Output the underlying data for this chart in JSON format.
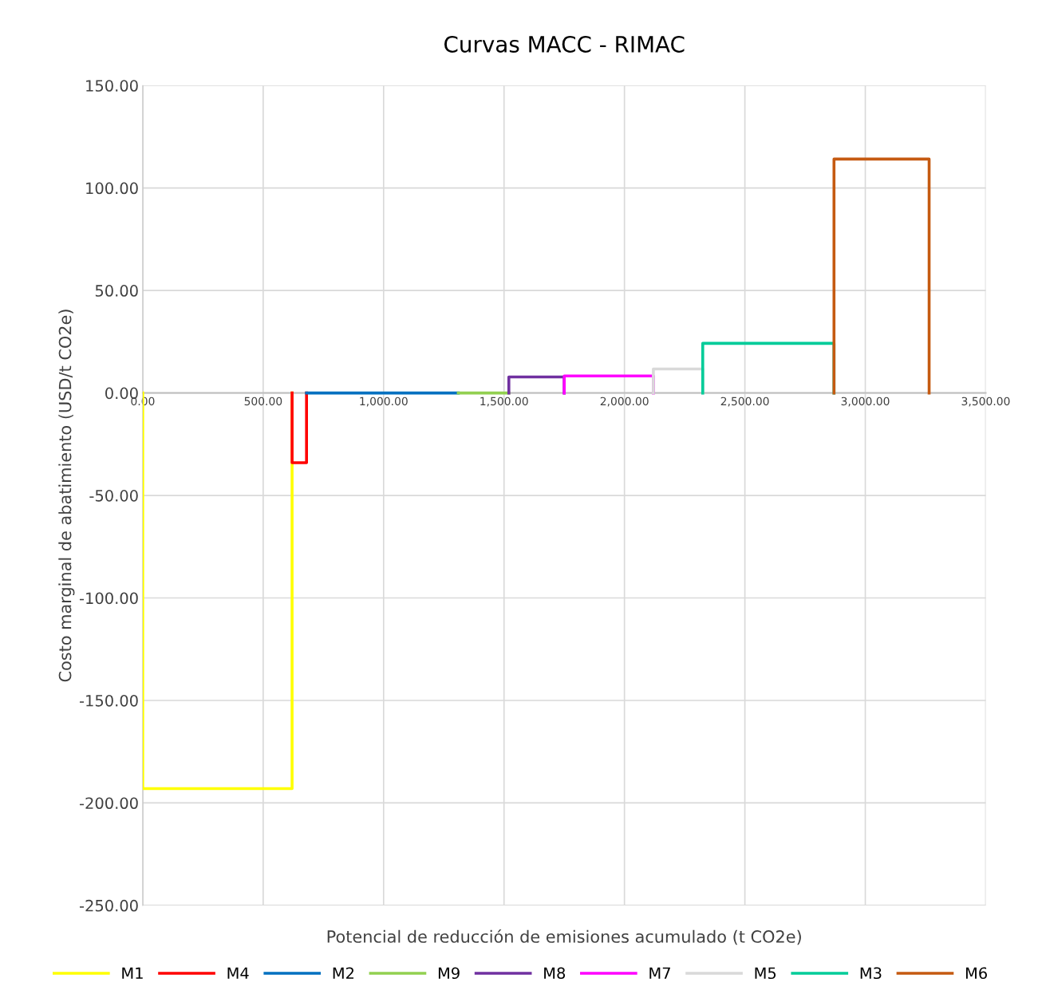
{
  "chart_data": {
    "type": "line",
    "title": "Curvas MACC - RIMAC",
    "xlabel": "Potencial de reducción de emisiones acumulado (t CO2e)",
    "ylabel": "Costo marginal de abatimiento (USD/t CO2e)",
    "xlim": [
      0,
      3500
    ],
    "ylim": [
      -250,
      150
    ],
    "xticks": [
      {
        "value": 0,
        "label": "0.00"
      },
      {
        "value": 500,
        "label": "500.00"
      },
      {
        "value": 1000,
        "label": "1,000.00"
      },
      {
        "value": 1500,
        "label": "1,500.00"
      },
      {
        "value": 2000,
        "label": "2,000.00"
      },
      {
        "value": 2500,
        "label": "2,500.00"
      },
      {
        "value": 3000,
        "label": "3,000.00"
      },
      {
        "value": 3500,
        "label": "3,500.00"
      }
    ],
    "yticks": [
      {
        "value": -250,
        "label": "-250.00"
      },
      {
        "value": -200,
        "label": "-200.00"
      },
      {
        "value": -150,
        "label": "-150.00"
      },
      {
        "value": -100,
        "label": "-100.00"
      },
      {
        "value": -50,
        "label": "-50.00"
      },
      {
        "value": 0,
        "label": "0.00"
      },
      {
        "value": 50,
        "label": "50.00"
      },
      {
        "value": 100,
        "label": "100.00"
      },
      {
        "value": 150,
        "label": "150.00"
      }
    ],
    "grid": true,
    "legend": "bottom",
    "marker": "none",
    "line_style": "solid",
    "series": [
      {
        "name": "M1",
        "color": "#ffff00",
        "x": [
          0,
          0,
          620,
          620
        ],
        "values": [
          0,
          -193,
          -193,
          0
        ]
      },
      {
        "name": "M4",
        "color": "#ff0000",
        "x": [
          620,
          620,
          680,
          680
        ],
        "values": [
          0,
          -34,
          -34,
          0
        ]
      },
      {
        "name": "M2",
        "color": "#0070c0",
        "x": [
          680,
          680,
          1310,
          1310
        ],
        "values": [
          0,
          0,
          0,
          0
        ]
      },
      {
        "name": "M9",
        "color": "#92d050",
        "x": [
          1310,
          1310,
          1520,
          1520
        ],
        "values": [
          0,
          0,
          0,
          0
        ]
      },
      {
        "name": "M8",
        "color": "#7030a0",
        "x": [
          1520,
          1520,
          1750,
          1750
        ],
        "values": [
          0,
          7.8,
          7.8,
          0
        ]
      },
      {
        "name": "M7",
        "color": "#ff00ff",
        "x": [
          1750,
          1750,
          2120,
          2120
        ],
        "values": [
          0,
          8.3,
          8.3,
          0
        ]
      },
      {
        "name": "M5",
        "color": "#d9d9d9",
        "x": [
          2120,
          2120,
          2325,
          2325
        ],
        "values": [
          0,
          11.7,
          11.7,
          0
        ]
      },
      {
        "name": "M3",
        "color": "#00cc99",
        "x": [
          2325,
          2325,
          2870,
          2870
        ],
        "values": [
          0,
          24.2,
          24.2,
          0
        ]
      },
      {
        "name": "M6",
        "color": "#c55a11",
        "x": [
          2870,
          2870,
          3265,
          3265
        ],
        "values": [
          0,
          114.1,
          114.1,
          0
        ]
      }
    ]
  }
}
